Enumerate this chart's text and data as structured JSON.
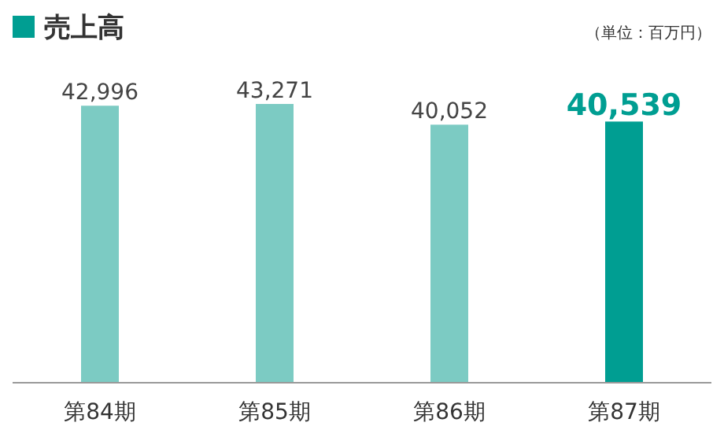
{
  "chart_data": {
    "type": "bar",
    "title": "売上高",
    "annotations": [
      "（単位：百万円）"
    ],
    "categories": [
      "第84期",
      "第85期",
      "第86期",
      "第87期"
    ],
    "values": [
      42996,
      43271,
      40052,
      40539
    ],
    "value_labels": [
      "42,996",
      "43,271",
      "40,052",
      "40,539"
    ],
    "colors": [
      "#7ccbc3",
      "#7ccbc3",
      "#7ccbc3",
      "#009e92"
    ]
  }
}
